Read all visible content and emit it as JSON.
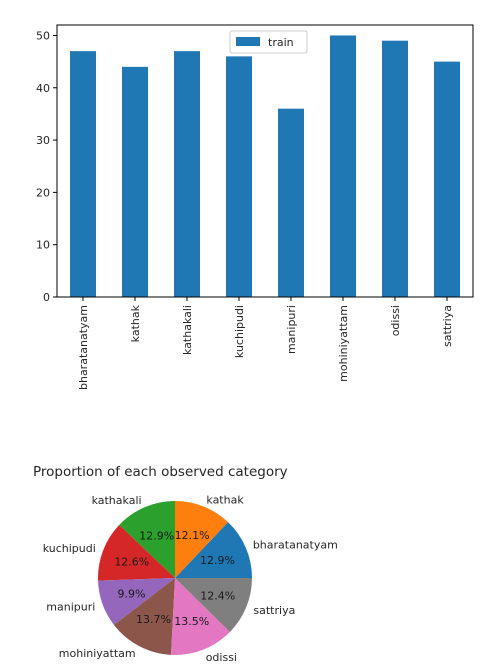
{
  "chart_data": [
    {
      "type": "bar",
      "categories": [
        "bharatanatyam",
        "kathak",
        "kathakali",
        "kuchipudi",
        "manipuri",
        "mohiniyattam",
        "odissi",
        "sattriya"
      ],
      "series": [
        {
          "name": "train",
          "values": [
            47,
            44,
            47,
            46,
            36,
            50,
            49,
            45
          ],
          "color": "#1f77b4"
        }
      ],
      "title": "",
      "xlabel": "",
      "ylabel": "",
      "ylim": [
        0,
        52
      ],
      "yticks": [
        0,
        10,
        20,
        30,
        40,
        50
      ],
      "grid": false,
      "legend_position": "top-center"
    },
    {
      "type": "pie",
      "title": "Proportion of each observed category",
      "labels": [
        "bharatanatyam",
        "kathak",
        "kathakali",
        "kuchipudi",
        "manipuri",
        "mohiniyattam",
        "odissi",
        "sattriya"
      ],
      "values": [
        47,
        44,
        47,
        46,
        36,
        50,
        49,
        45
      ],
      "percent_labels": [
        "12.9%",
        "12.1%",
        "12.9%",
        "12.6%",
        "9.9%",
        "13.7%",
        "13.5%",
        "12.4%"
      ],
      "colors": [
        "#1f77b4",
        "#ff7f0e",
        "#2ca02c",
        "#d62728",
        "#9467bd",
        "#8c564b",
        "#e377c2",
        "#7f7f7f"
      ],
      "start_angle_deg": 0,
      "direction": "counterclockwise"
    }
  ]
}
